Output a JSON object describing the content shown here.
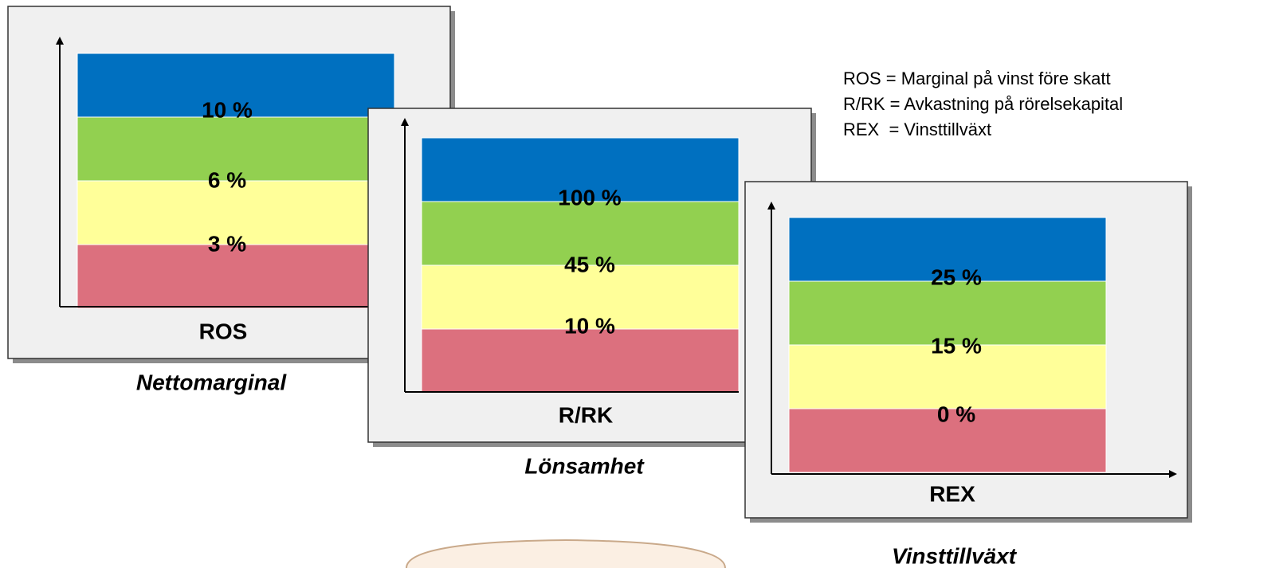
{
  "legend": [
    "ROS = Marginal på vinst före skatt",
    "R/RK = Avkastning på rörelsekapital",
    "REX  = Vinsttillväxt"
  ],
  "panels": [
    {
      "thresholds": [
        "10 %",
        "6 %",
        "3 %"
      ],
      "axis_label": "ROS",
      "caption": "Nettomarginal"
    },
    {
      "thresholds": [
        "100 %",
        "45 %",
        "10 %"
      ],
      "axis_label": "R/RK",
      "caption": "Lönsamhet"
    },
    {
      "thresholds": [
        "25 %",
        "15 %",
        "0 %"
      ],
      "axis_label": "REX",
      "caption": "Vinsttillväxt"
    }
  ]
}
